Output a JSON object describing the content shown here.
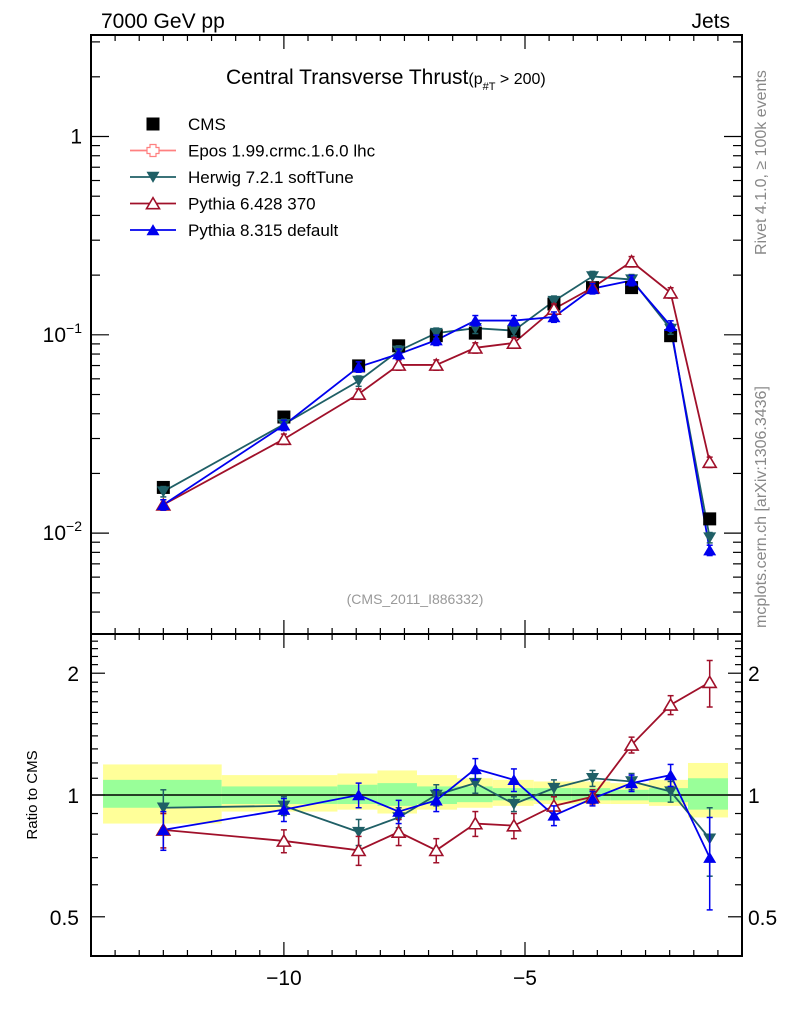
{
  "header": {
    "left_label": "7000 GeV pp",
    "right_label": "Jets"
  },
  "side_labels": {
    "top": "Rivet 4.1.0, ≥ 100k events",
    "bottom": "mcplots.cern.ch [arXiv:1306.3436]"
  },
  "colors": {
    "CMS": "#000000",
    "Epos": "#ff8080",
    "Herwig": "#1f5f66",
    "Pythia6": "#a0102a",
    "Pythia8": "#0000ee",
    "band_outer": "#ffff99",
    "band_inner": "#99ff99"
  },
  "chart_data": [
    {
      "type": "line",
      "panel": "main",
      "title": "Central Transverse Thrust",
      "title_suffix_main": "(p",
      "title_suffix_sub": "#T",
      "title_suffix_tail": "  > 200)",
      "watermark": "(CMS_2011_I886332)",
      "xlabel": "",
      "ylabel": "",
      "yscale": "log",
      "xlim": [
        -14,
        -0.5
      ],
      "ylim": [
        0.0031,
        3.25
      ],
      "yticks": [
        {
          "value": 1,
          "label": "1"
        },
        {
          "value": 0.1,
          "label": "10",
          "exp": "−1"
        },
        {
          "value": 0.01,
          "label": "10",
          "exp": "−2"
        }
      ],
      "legend_position": "top-left",
      "legend": [
        {
          "name": "CMS",
          "label": "CMS",
          "marker": "square"
        },
        {
          "name": "Epos",
          "label": "Epos 1.99.crmc.1.6.0 lhc",
          "marker": "open-cross"
        },
        {
          "name": "Herwig",
          "label": "Herwig 7.2.1 softTune",
          "marker": "triangle-down"
        },
        {
          "name": "Pythia6",
          "label": "Pythia 6.428 370",
          "marker": "open-triangle-up"
        },
        {
          "name": "Pythia8",
          "label": "Pythia 8.315 default",
          "marker": "triangle-up"
        }
      ],
      "x": [
        -12.5,
        -10.0,
        -8.45,
        -7.62,
        -6.84,
        -6.03,
        -5.23,
        -4.4,
        -3.6,
        -2.79,
        -1.98,
        -1.17
      ],
      "series": [
        {
          "name": "CMS",
          "values": [
            0.017,
            0.0385,
            0.0697,
            0.088,
            0.099,
            0.102,
            0.104,
            0.143,
            0.173,
            0.173,
            0.099,
            0.0118
          ]
        },
        {
          "name": "Herwig",
          "values": [
            0.0162,
            0.0354,
            0.0585,
            0.083,
            0.102,
            0.108,
            0.105,
            0.148,
            0.197,
            0.19,
            0.107,
            0.0095
          ]
        },
        {
          "name": "Pythia6",
          "values": [
            0.0139,
            0.0298,
            0.0503,
            0.0705,
            0.0705,
            0.086,
            0.091,
            0.135,
            0.173,
            0.234,
            0.163,
            0.0228
          ]
        },
        {
          "name": "Pythia8",
          "values": [
            0.0139,
            0.035,
            0.0689,
            0.08,
            0.094,
            0.118,
            0.118,
            0.123,
            0.171,
            0.188,
            0.111,
            0.0082
          ]
        }
      ]
    },
    {
      "type": "line",
      "panel": "ratio",
      "ylabel": "Ratio to CMS",
      "yscale": "log",
      "xlim": [
        -14,
        -0.5
      ],
      "ylim": [
        0.4,
        2.5
      ],
      "xticks": [
        {
          "value": -10,
          "label": "−10"
        },
        {
          "value": -5,
          "label": "−5"
        }
      ],
      "yticks": [
        {
          "value": 2,
          "label": "2"
        },
        {
          "value": 1,
          "label": "1"
        },
        {
          "value": 0.5,
          "label": "0.5"
        }
      ],
      "band_bin_edges": [
        -13.75,
        -11.29,
        -8.89,
        -8.06,
        -7.24,
        -6.41,
        -5.67,
        -4.82,
        -4.04,
        -3.23,
        -2.43,
        -1.62,
        -0.79
      ],
      "band_outer": [
        [
          0.85,
          1.19
        ],
        [
          0.91,
          1.12
        ],
        [
          0.92,
          1.13
        ],
        [
          0.9,
          1.15
        ],
        [
          0.92,
          1.12
        ],
        [
          0.93,
          1.1
        ],
        [
          0.94,
          1.09
        ],
        [
          0.95,
          1.08
        ],
        [
          0.95,
          1.08
        ],
        [
          0.95,
          1.07
        ],
        [
          0.94,
          1.09
        ],
        [
          0.88,
          1.2
        ]
      ],
      "band_inner": [
        [
          0.93,
          1.09
        ],
        [
          0.95,
          1.05
        ],
        [
          0.95,
          1.06
        ],
        [
          0.94,
          1.07
        ],
        [
          0.95,
          1.05
        ],
        [
          0.96,
          1.05
        ],
        [
          0.97,
          1.04
        ],
        [
          0.97,
          1.04
        ],
        [
          0.97,
          1.04
        ],
        [
          0.97,
          1.03
        ],
        [
          0.96,
          1.04
        ],
        [
          0.92,
          1.1
        ]
      ],
      "x": [
        -12.5,
        -10.0,
        -8.45,
        -7.62,
        -6.84,
        -6.03,
        -5.23,
        -4.4,
        -3.6,
        -2.79,
        -1.98,
        -1.17
      ],
      "series": [
        {
          "name": "Herwig",
          "values": [
            0.93,
            0.94,
            0.81,
            0.88,
            1.0,
            1.07,
            0.95,
            1.04,
            1.1,
            1.08,
            1.02,
            0.78
          ],
          "err": [
            0.1,
            0.05,
            0.06,
            0.05,
            0.06,
            0.06,
            0.04,
            0.05,
            0.05,
            0.05,
            0.06,
            0.15
          ]
        },
        {
          "name": "Pythia6",
          "values": [
            0.82,
            0.77,
            0.73,
            0.81,
            0.73,
            0.85,
            0.84,
            0.94,
            0.99,
            1.33,
            1.67,
            1.9
          ],
          "err": [
            0.08,
            0.05,
            0.06,
            0.06,
            0.05,
            0.06,
            0.06,
            0.05,
            0.04,
            0.06,
            0.09,
            0.25
          ]
        },
        {
          "name": "Pythia8",
          "values": [
            0.82,
            0.92,
            1.0,
            0.91,
            0.97,
            1.16,
            1.09,
            0.89,
            0.98,
            1.07,
            1.12,
            0.7
          ],
          "err": [
            0.09,
            0.06,
            0.07,
            0.06,
            0.06,
            0.07,
            0.07,
            0.05,
            0.04,
            0.05,
            0.07,
            0.18
          ]
        }
      ]
    }
  ]
}
